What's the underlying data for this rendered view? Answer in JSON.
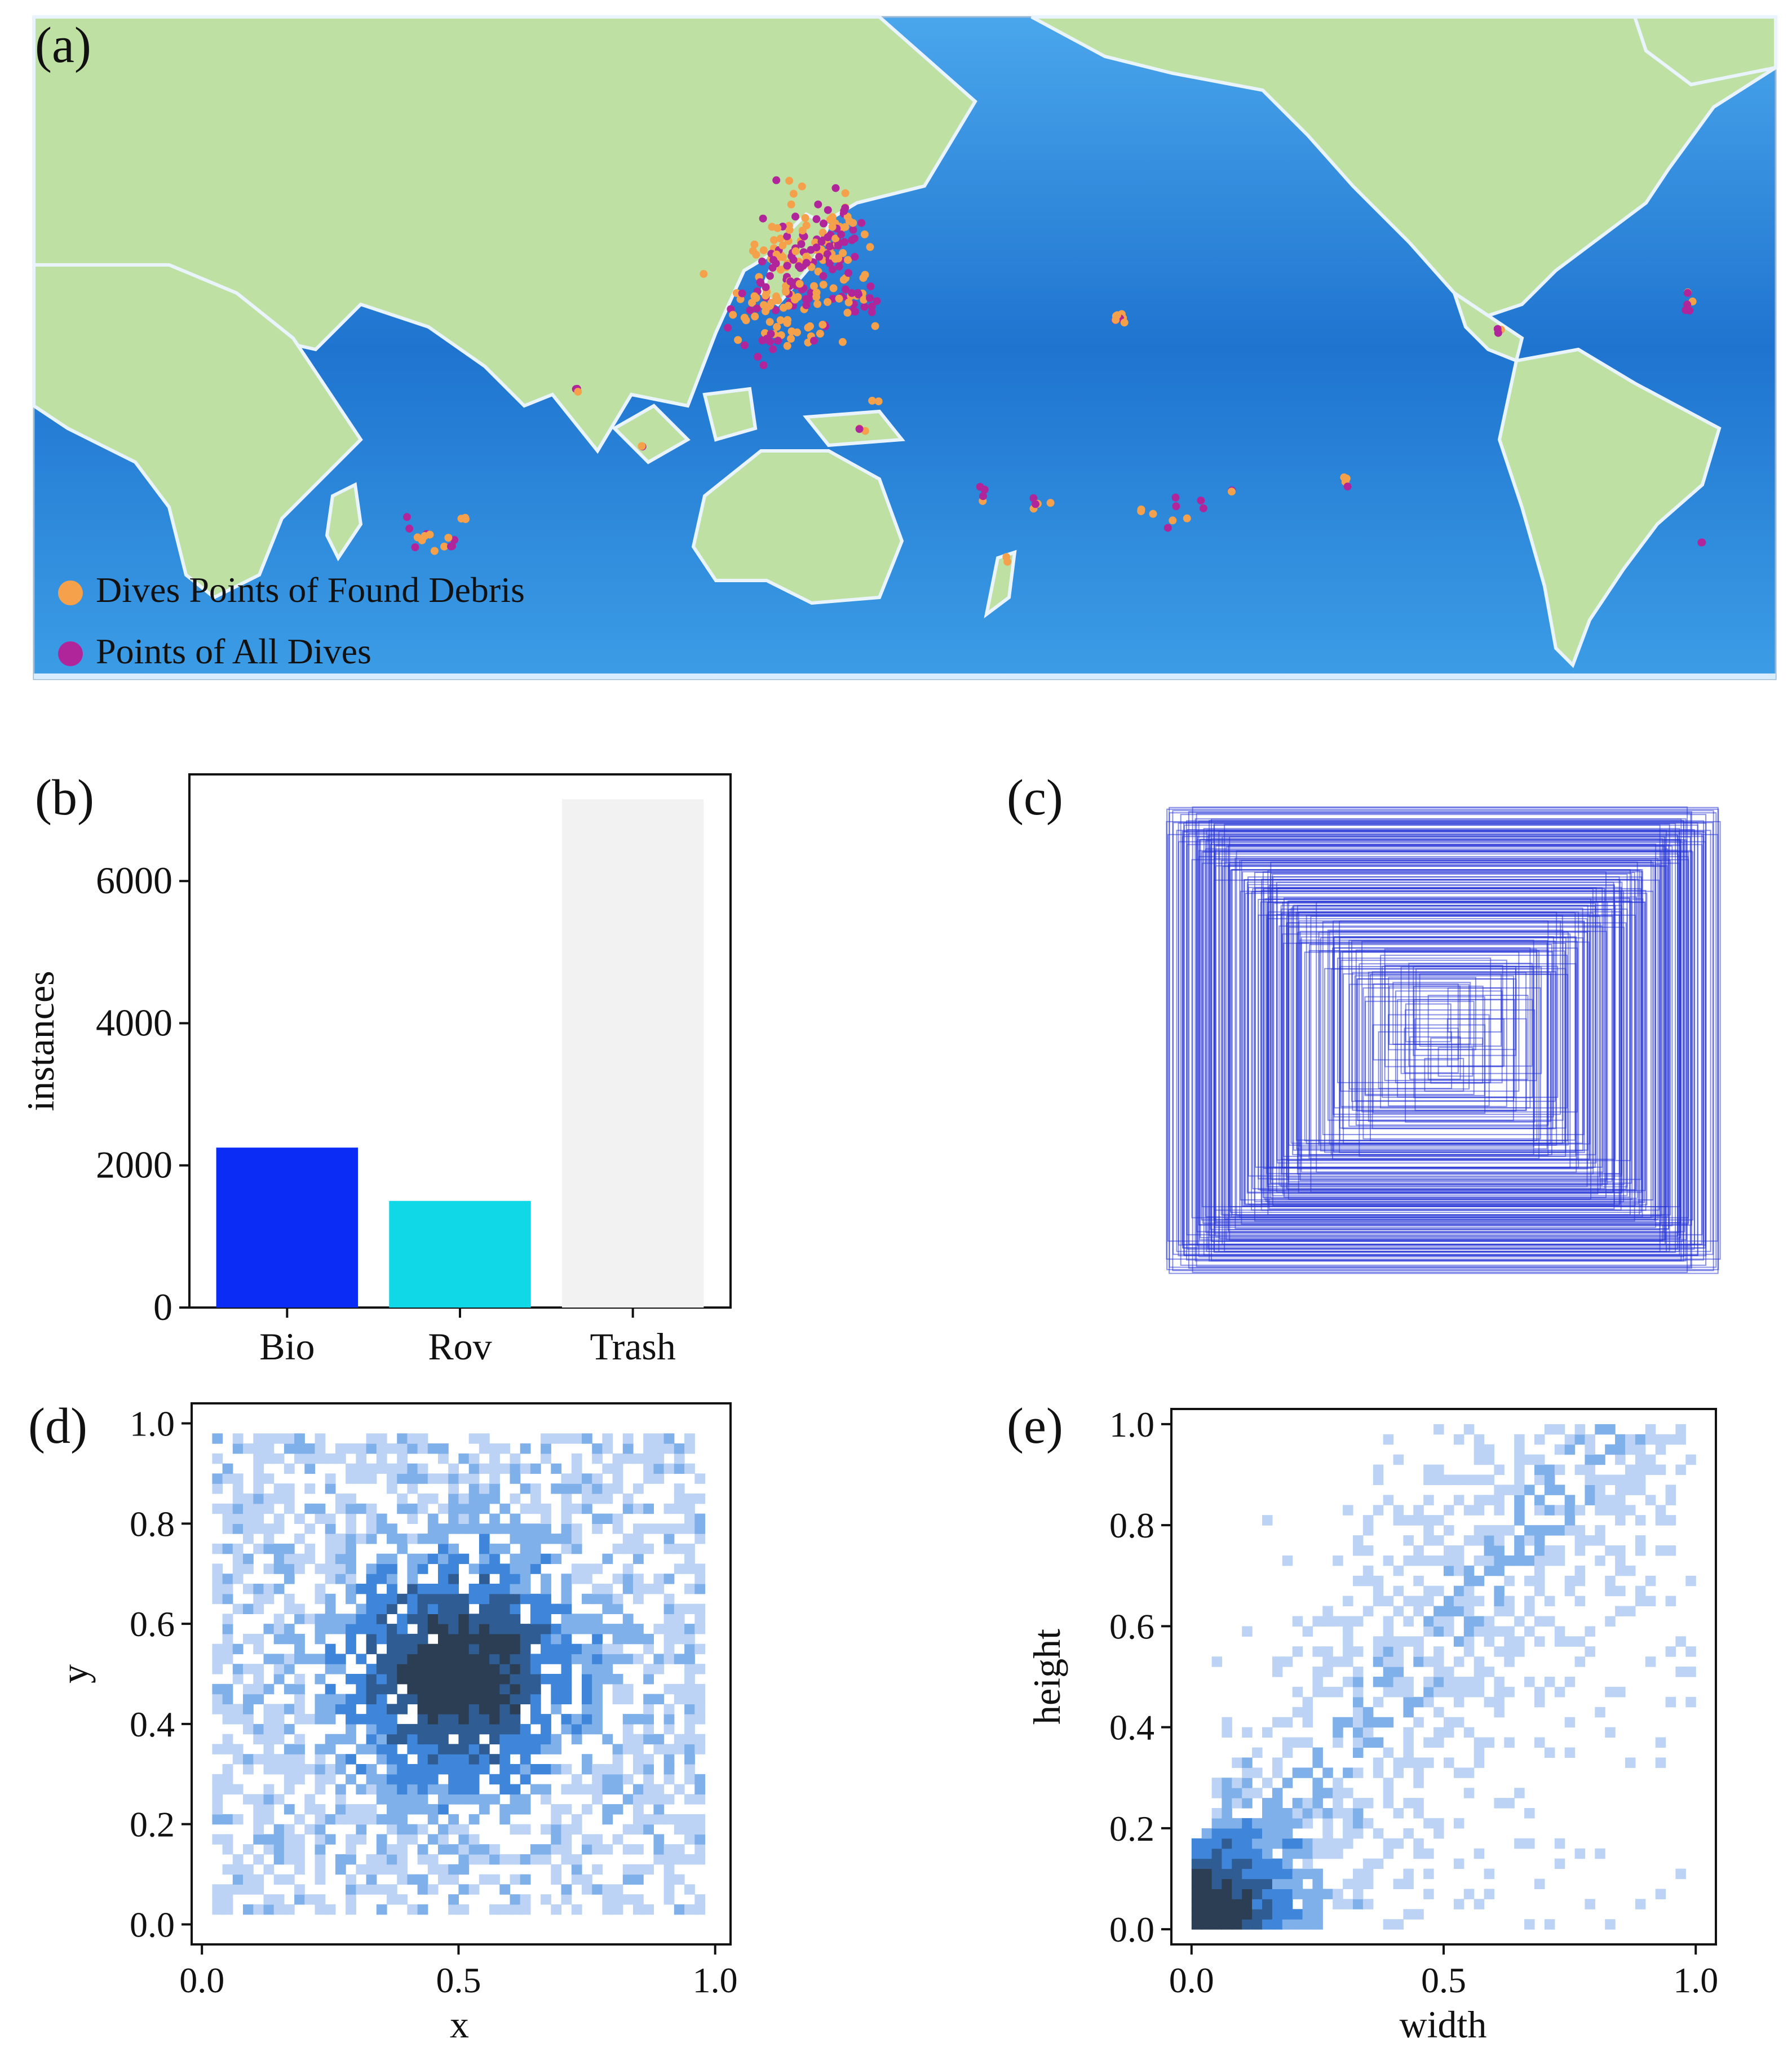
{
  "panels": {
    "a": {
      "label": "(a)"
    },
    "b": {
      "label": "(b)"
    },
    "c": {
      "label": "(c)"
    },
    "d": {
      "label": "(d)"
    },
    "e": {
      "label": "(e)"
    }
  },
  "map": {
    "legend": [
      {
        "label": "Dives Points of Found Debris",
        "color": "#f5a04a"
      },
      {
        "label": "Points of All Dives",
        "color": "#b0269a"
      }
    ],
    "ocean_color": "#2f86dc",
    "land_color": "#bfe0a3"
  },
  "chart_data": [
    {
      "id": "b",
      "type": "bar",
      "categories": [
        "Bio",
        "Rov",
        "Trash"
      ],
      "values": [
        2250,
        1500,
        7150
      ],
      "colors": [
        "#0a2cf5",
        "#10d8e6",
        "#f2f2f2"
      ],
      "ylabel": "instances",
      "yticks": [
        0,
        2000,
        4000,
        6000
      ],
      "ylim": [
        0,
        7500
      ]
    },
    {
      "id": "c",
      "type": "other",
      "description": "",
      "boxes_color": "#2433d6"
    },
    {
      "id": "d",
      "type": "heatmap",
      "xlabel": "x",
      "ylabel": "y",
      "xticks": [
        "0.0",
        "0.5",
        "1.0"
      ],
      "yticks": [
        "0.0",
        "0.2",
        "0.4",
        "0.6",
        "0.8",
        "1.0"
      ],
      "xlim": [
        -0.02,
        1.03
      ],
      "ylim": [
        -0.04,
        1.04
      ],
      "distribution": {
        "center": [
          0.5,
          0.5
        ],
        "spread": 0.16
      },
      "cmap": [
        "#bcd3f5",
        "#7fb0ea",
        "#3f86db",
        "#2f5c92",
        "#2c3e54"
      ]
    },
    {
      "id": "e",
      "type": "heatmap",
      "xlabel": "width",
      "ylabel": "height",
      "xticks": [
        "0.0",
        "0.5",
        "1.0"
      ],
      "yticks": [
        "0.0",
        "0.2",
        "0.4",
        "0.6",
        "0.8",
        "1.0"
      ],
      "xlim": [
        -0.04,
        1.04
      ],
      "ylim": [
        -0.03,
        1.03
      ],
      "distribution": {
        "dense_corner": [
          0.08,
          0.08
        ]
      },
      "cmap": [
        "#bcd3f5",
        "#7fb0ea",
        "#3f86db",
        "#2f5c92",
        "#2c3e54"
      ]
    }
  ]
}
